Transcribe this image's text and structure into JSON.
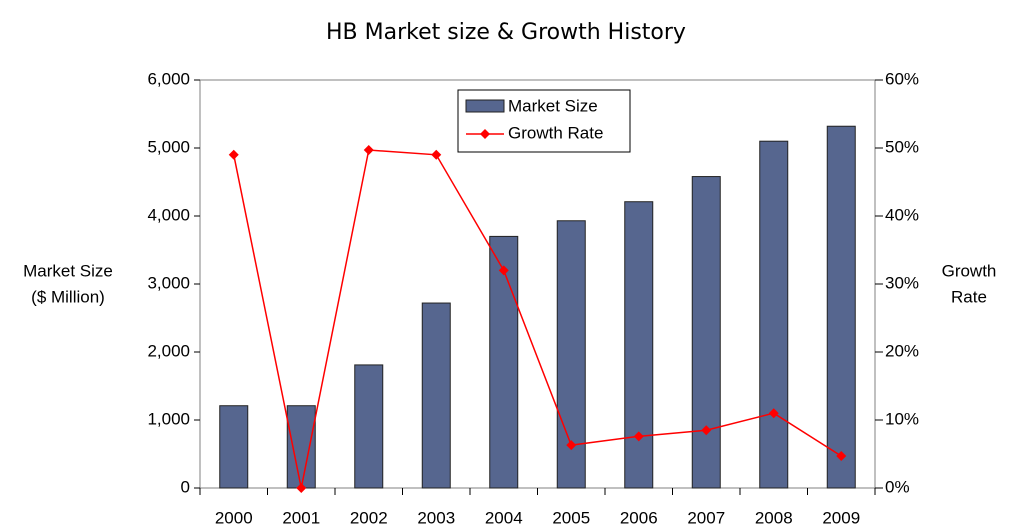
{
  "chart_data": {
    "type": "bar_line",
    "title": "HB Market size & Growth History",
    "ylabel": [
      "Market Size",
      "($ Million)"
    ],
    "y2label": [
      "Growth",
      "Rate"
    ],
    "categories": [
      "2000",
      "2001",
      "2002",
      "2003",
      "2004",
      "2005",
      "2006",
      "2007",
      "2008",
      "2009"
    ],
    "series": [
      {
        "name": "Market Size",
        "type": "bar",
        "color": "#56668f",
        "values": [
          1210,
          1210,
          1810,
          2720,
          3700,
          3930,
          4210,
          4580,
          5100,
          5320
        ]
      },
      {
        "name": "Growth Rate",
        "type": "line",
        "axis": "y2",
        "color": "#ff0000",
        "values": [
          49,
          0,
          49.7,
          49,
          32,
          6.3,
          7.6,
          8.5,
          11,
          4.7
        ]
      }
    ],
    "ylim": [
      0,
      6000
    ],
    "yticks": [
      0,
      {
        "value": 1000,
        "label": "1,000"
      },
      {
        "value": 2000,
        "label": "2,000"
      },
      {
        "value": 3000,
        "label": "3,000"
      },
      {
        "value": 4000,
        "label": "4,000"
      },
      {
        "value": 5000,
        "label": "5,000"
      },
      {
        "value": 6000,
        "label": "6,000"
      }
    ],
    "y2lim": [
      0,
      60
    ],
    "y2ticks": [
      {
        "value": 0,
        "label": "0%"
      },
      {
        "value": 10,
        "label": "10%"
      },
      {
        "value": 20,
        "label": "20%"
      },
      {
        "value": 30,
        "label": "30%"
      },
      {
        "value": 40,
        "label": "40%"
      },
      {
        "value": 50,
        "label": "50%"
      },
      {
        "value": 60,
        "label": "60%"
      }
    ],
    "legend": "top"
  }
}
